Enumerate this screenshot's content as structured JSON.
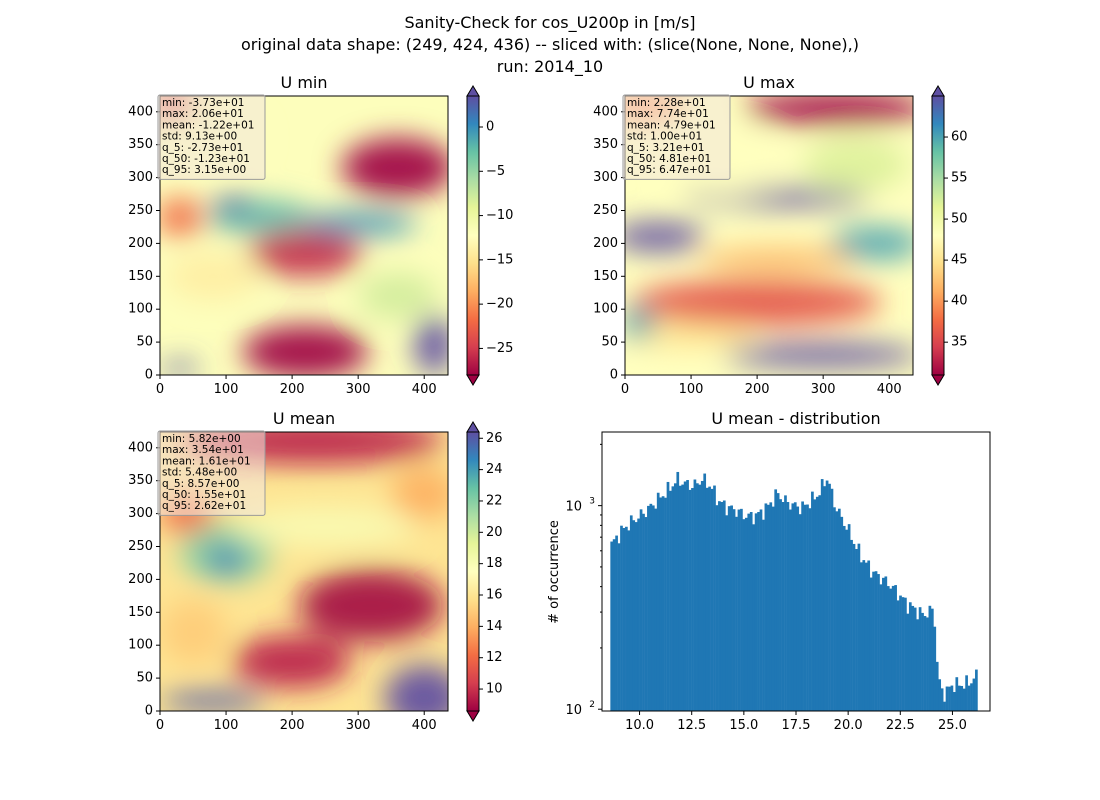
{
  "figure": {
    "title_lines": [
      "Sanity-Check for cos_U200p in [m/s]",
      "original data shape: (249, 424, 436) -- sliced with: (slice(None, None, None),)",
      "run: 2014_10"
    ]
  },
  "colormap": "Spectral",
  "chart_data": [
    {
      "type": "heatmap",
      "title": "U min",
      "xlim": [
        0,
        436
      ],
      "ylim": [
        0,
        424
      ],
      "xticks": [
        "0",
        "100",
        "200",
        "300",
        "400"
      ],
      "yticks": [
        "0",
        "50",
        "100",
        "150",
        "200",
        "250",
        "300",
        "350",
        "400"
      ],
      "colorbar": {
        "range": [
          -28,
          3.5
        ],
        "extend": "both",
        "ticks": [
          "0",
          "−5",
          "−10",
          "−15",
          "−20",
          "−25"
        ]
      },
      "stats": [
        "min: -3.73e+01",
        "max: 2.06e+01",
        "mean: -1.22e+01",
        "std: 9.13e+00",
        "q_5: -2.73e+01",
        "q_50: -1.23e+01",
        "q_95: 3.15e+00"
      ],
      "features": [
        {
          "x": 360,
          "y": 315,
          "rx": 85,
          "ry": 45,
          "value": -28
        },
        {
          "x": 220,
          "y": 185,
          "rx": 85,
          "ry": 35,
          "value": -26
        },
        {
          "x": 220,
          "y": 35,
          "rx": 95,
          "ry": 40,
          "value": -28
        },
        {
          "x": 20,
          "y": 410,
          "rx": 35,
          "ry": 25,
          "value": -25
        },
        {
          "x": 90,
          "y": 360,
          "rx": 60,
          "ry": 40,
          "value": -12
        },
        {
          "x": 30,
          "y": 240,
          "rx": 35,
          "ry": 30,
          "value": -22
        },
        {
          "x": 360,
          "y": 120,
          "rx": 60,
          "ry": 35,
          "value": -8
        },
        {
          "x": 150,
          "y": 240,
          "rx": 80,
          "ry": 25,
          "value": -2
        },
        {
          "x": 300,
          "y": 230,
          "rx": 90,
          "ry": 18,
          "value": 0
        },
        {
          "x": 80,
          "y": 150,
          "rx": 70,
          "ry": 35,
          "value": -14
        },
        {
          "x": 110,
          "y": 260,
          "rx": 30,
          "ry": 12,
          "value": 3
        },
        {
          "x": 415,
          "y": 45,
          "rx": 30,
          "ry": 45,
          "value": 3.5
        },
        {
          "x": 30,
          "y": 10,
          "rx": 30,
          "ry": 10,
          "value": 3
        }
      ]
    },
    {
      "type": "heatmap",
      "title": "U max",
      "xlim": [
        0,
        436
      ],
      "ylim": [
        0,
        424
      ],
      "xticks": [
        "0",
        "100",
        "200",
        "300",
        "400"
      ],
      "yticks": [
        "0",
        "50",
        "100",
        "150",
        "200",
        "250",
        "300",
        "350",
        "400"
      ],
      "colorbar": {
        "range": [
          31,
          65
        ],
        "extend": "both",
        "ticks": [
          "35",
          "40",
          "45",
          "50",
          "55",
          "60"
        ]
      },
      "stats": [
        "min: 2.28e+01",
        "max: 7.74e+01",
        "mean: 4.79e+01",
        "std: 1.00e+01",
        "q_5: 3.21e+01",
        "q_50: 4.81e+01",
        "q_95: 6.47e+01"
      ],
      "features": [
        {
          "x": 320,
          "y": 405,
          "rx": 140,
          "ry": 25,
          "value": 31
        },
        {
          "x": 30,
          "y": 410,
          "rx": 60,
          "ry": 20,
          "value": 38
        },
        {
          "x": 50,
          "y": 210,
          "rx": 70,
          "ry": 22,
          "value": 65
        },
        {
          "x": 230,
          "y": 270,
          "rx": 140,
          "ry": 14,
          "value": 65
        },
        {
          "x": 380,
          "y": 200,
          "rx": 70,
          "ry": 25,
          "value": 60
        },
        {
          "x": 300,
          "y": 30,
          "rx": 150,
          "ry": 18,
          "value": 65
        },
        {
          "x": 150,
          "y": 320,
          "rx": 90,
          "ry": 50,
          "value": 48
        },
        {
          "x": 350,
          "y": 320,
          "rx": 80,
          "ry": 40,
          "value": 52
        },
        {
          "x": 200,
          "y": 110,
          "rx": 190,
          "ry": 35,
          "value": 36
        },
        {
          "x": 230,
          "y": 175,
          "rx": 120,
          "ry": 20,
          "value": 42
        },
        {
          "x": 100,
          "y": 60,
          "rx": 100,
          "ry": 20,
          "value": 45
        },
        {
          "x": 20,
          "y": 80,
          "rx": 25,
          "ry": 25,
          "value": 60
        }
      ]
    },
    {
      "type": "heatmap",
      "title": "U mean",
      "xlim": [
        0,
        436
      ],
      "ylim": [
        0,
        424
      ],
      "xticks": [
        "0",
        "100",
        "200",
        "300",
        "400"
      ],
      "yticks": [
        "0",
        "50",
        "100",
        "150",
        "200",
        "250",
        "300",
        "350",
        "400"
      ],
      "colorbar": {
        "range": [
          8.6,
          26.4
        ],
        "extend": "both",
        "ticks": [
          "10",
          "12",
          "14",
          "16",
          "18",
          "20",
          "22",
          "24",
          "26"
        ]
      },
      "stats": [
        "min: 5.82e+00",
        "max: 3.54e+01",
        "mean: 1.61e+01",
        "std: 5.48e+00",
        "q_5: 8.57e+00",
        "q_50: 1.55e+01",
        "q_95: 2.62e+01"
      ],
      "features": [
        {
          "x": 320,
          "y": 160,
          "rx": 110,
          "ry": 55,
          "value": 8.8
        },
        {
          "x": 200,
          "y": 75,
          "rx": 90,
          "ry": 40,
          "value": 9.5
        },
        {
          "x": 230,
          "y": 410,
          "rx": 200,
          "ry": 35,
          "value": 9.5
        },
        {
          "x": 40,
          "y": 300,
          "rx": 40,
          "ry": 30,
          "value": 12
        },
        {
          "x": 100,
          "y": 240,
          "rx": 70,
          "ry": 45,
          "value": 22
        },
        {
          "x": 100,
          "y": 230,
          "rx": 30,
          "ry": 20,
          "value": 25
        },
        {
          "x": 250,
          "y": 280,
          "rx": 140,
          "ry": 30,
          "value": 18
        },
        {
          "x": 400,
          "y": 20,
          "rx": 60,
          "ry": 50,
          "value": 26.5
        },
        {
          "x": 80,
          "y": 15,
          "rx": 80,
          "ry": 15,
          "value": 26
        },
        {
          "x": 50,
          "y": 120,
          "rx": 50,
          "ry": 50,
          "value": 15
        },
        {
          "x": 400,
          "y": 330,
          "rx": 50,
          "ry": 40,
          "value": 14
        }
      ]
    },
    {
      "type": "bar",
      "title": "U mean - distribution",
      "ylabel": "# of occurrence",
      "yscale": "log",
      "xlim": [
        8.2,
        26.8
      ],
      "ylim": [
        98,
        2300
      ],
      "xticks": [
        "10.0",
        "12.5",
        "15.0",
        "17.5",
        "20.0",
        "22.5",
        "25.0"
      ],
      "yticks": [
        "10",
        "10"
      ],
      "ytick_exponents": [
        "2",
        "3"
      ],
      "bin_edges": [
        8.6,
        26.2
      ],
      "anchors": [
        [
          8.6,
          630
        ],
        [
          9.0,
          720
        ],
        [
          9.4,
          800
        ],
        [
          9.8,
          860
        ],
        [
          10.2,
          920
        ],
        [
          10.6,
          1000
        ],
        [
          11.0,
          1100
        ],
        [
          11.4,
          1200
        ],
        [
          11.8,
          1350
        ],
        [
          12.2,
          1280
        ],
        [
          12.6,
          1250
        ],
        [
          13.0,
          1350
        ],
        [
          13.4,
          1250
        ],
        [
          13.8,
          1050
        ],
        [
          14.2,
          980
        ],
        [
          14.6,
          950
        ],
        [
          15.0,
          900
        ],
        [
          15.4,
          880
        ],
        [
          15.8,
          920
        ],
        [
          16.2,
          1000
        ],
        [
          16.6,
          1150
        ],
        [
          17.0,
          1050
        ],
        [
          17.4,
          1000
        ],
        [
          17.8,
          980
        ],
        [
          18.2,
          1050
        ],
        [
          18.6,
          1150
        ],
        [
          19.0,
          1380
        ],
        [
          19.3,
          1050
        ],
        [
          19.6,
          900
        ],
        [
          20.0,
          760
        ],
        [
          20.4,
          620
        ],
        [
          20.8,
          530
        ],
        [
          21.2,
          470
        ],
        [
          21.6,
          440
        ],
        [
          22.0,
          410
        ],
        [
          22.4,
          370
        ],
        [
          22.8,
          330
        ],
        [
          23.2,
          310
        ],
        [
          23.6,
          290
        ],
        [
          24.1,
          310
        ],
        [
          24.3,
          140
        ],
        [
          24.6,
          118
        ],
        [
          25.0,
          132
        ],
        [
          25.4,
          132
        ],
        [
          25.8,
          135
        ],
        [
          26.2,
          148
        ]
      ]
    }
  ]
}
